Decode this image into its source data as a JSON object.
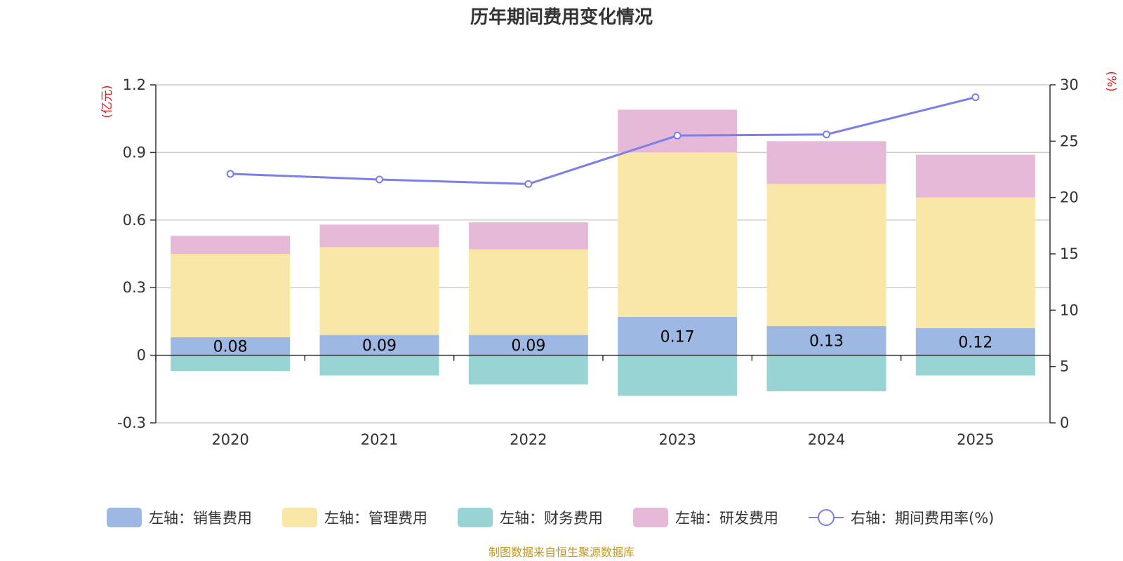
{
  "chart_data": {
    "type": "bar",
    "title": "历年期间费用变化情况",
    "categories": [
      "2020",
      "2021",
      "2022",
      "2023",
      "2024",
      "2025"
    ],
    "left_axis": {
      "unit": "(亿元)",
      "ylim": [
        -0.3,
        1.2
      ],
      "ticks": [
        -0.3,
        0,
        0.3,
        0.6,
        0.9,
        1.2
      ],
      "tick_labels": [
        "-0.3",
        "0",
        "0.3",
        "0.6",
        "0.9",
        "1.2"
      ]
    },
    "right_axis": {
      "unit": "(%)",
      "ylim": [
        0,
        30
      ],
      "ticks": [
        0,
        5,
        10,
        15,
        20,
        25,
        30
      ],
      "tick_labels": [
        "0",
        "5",
        "10",
        "15",
        "20",
        "25",
        "30"
      ]
    },
    "series": [
      {
        "name": "左轴：销售费用",
        "type": "bar",
        "axis": "left",
        "color": "#9db9e3",
        "values": [
          0.08,
          0.09,
          0.09,
          0.17,
          0.13,
          0.12
        ],
        "labels": [
          "0.08",
          "0.09",
          "0.09",
          "0.17",
          "0.13",
          "0.12"
        ]
      },
      {
        "name": "左轴：管理费用",
        "type": "bar",
        "axis": "left",
        "color": "#f9e7a7",
        "values": [
          0.37,
          0.39,
          0.38,
          0.73,
          0.63,
          0.58
        ]
      },
      {
        "name": "左轴：财务费用",
        "type": "bar",
        "axis": "left",
        "color": "#98d4d4",
        "values": [
          -0.07,
          -0.09,
          -0.13,
          -0.18,
          -0.16,
          -0.09
        ]
      },
      {
        "name": "左轴：研发费用",
        "type": "bar",
        "axis": "left",
        "color": "#e7b9d9",
        "values": [
          0.08,
          0.1,
          0.12,
          0.19,
          0.19,
          0.19
        ]
      },
      {
        "name": "右轴：期间费用率(%)",
        "type": "line",
        "axis": "right",
        "color": "#7b7fe8",
        "values": [
          22.1,
          21.6,
          21.2,
          25.5,
          25.6,
          28.9
        ]
      }
    ],
    "source": "制图数据来自恒生聚源数据库"
  }
}
